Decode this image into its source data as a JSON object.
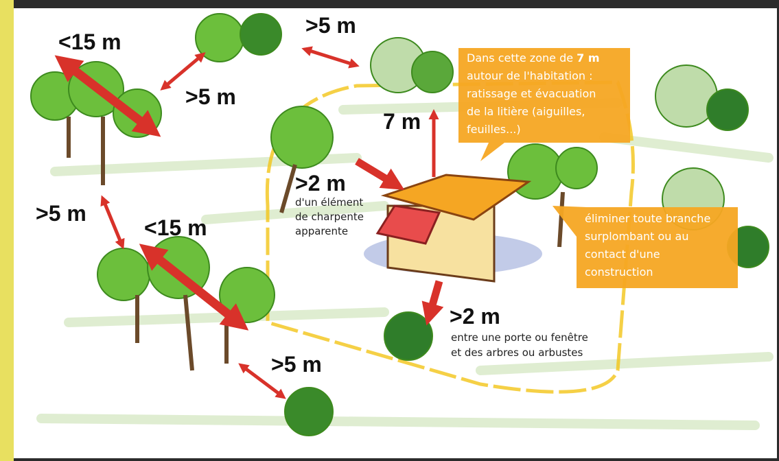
{
  "distances": [
    {
      "text": "<15 m"
    },
    {
      "text": ">5 m"
    },
    {
      "text": ">5 m"
    },
    {
      "text": "7 m"
    },
    {
      "text": ">2 m",
      "detail": [
        "d'un élément",
        "de charpente",
        "apparente"
      ]
    },
    {
      "text": ">5 m"
    },
    {
      "text": "<15 m"
    },
    {
      "text": ">2 m",
      "detail": [
        "entre une porte ou fenêtre",
        "et des arbres ou arbustes"
      ]
    },
    {
      "text": ">5 m"
    }
  ],
  "callouts": [
    {
      "lead": "Dans cette zone de",
      "emphasis": "7 m",
      "lines": [
        "autour de l'habitation :",
        "ratissage et évacuation",
        "de la litière (aiguilles,",
        "feuilles...)"
      ]
    },
    {
      "lines": [
        "éliminer toute branche",
        "surplombant ou au",
        "contact d'une",
        "construction"
      ]
    }
  ]
}
